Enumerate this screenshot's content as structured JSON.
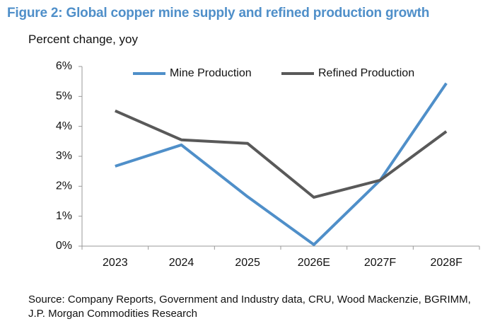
{
  "chart_data": {
    "type": "line",
    "title": "Figure 2: Global copper mine supply and refined production growth",
    "subtitle": "Percent change, yoy",
    "source": "Source: Company Reports, Government and Industry data, CRU, Wood Mackenzie, BGRIMM, J.P. Morgan Commodities Research",
    "categories": [
      "2023",
      "2024",
      "2025",
      "2026E",
      "2027F",
      "2028F"
    ],
    "series": [
      {
        "name": "Mine Production",
        "color": "#4f8fc9",
        "values": [
          2.67,
          3.38,
          1.65,
          0.05,
          2.2,
          5.44
        ]
      },
      {
        "name": "Refined Production",
        "color": "#595959",
        "values": [
          4.52,
          3.55,
          3.43,
          1.63,
          2.2,
          3.83
        ]
      }
    ],
    "ylim": [
      0,
      6
    ],
    "yticks": [
      {
        "value": 0,
        "label": "0%"
      },
      {
        "value": 1,
        "label": "1%"
      },
      {
        "value": 2,
        "label": "2%"
      },
      {
        "value": 3,
        "label": "3%"
      },
      {
        "value": 4,
        "label": "4%"
      },
      {
        "value": 5,
        "label": "5%"
      },
      {
        "value": 6,
        "label": "6%"
      }
    ],
    "grid": false,
    "legend": "top"
  }
}
